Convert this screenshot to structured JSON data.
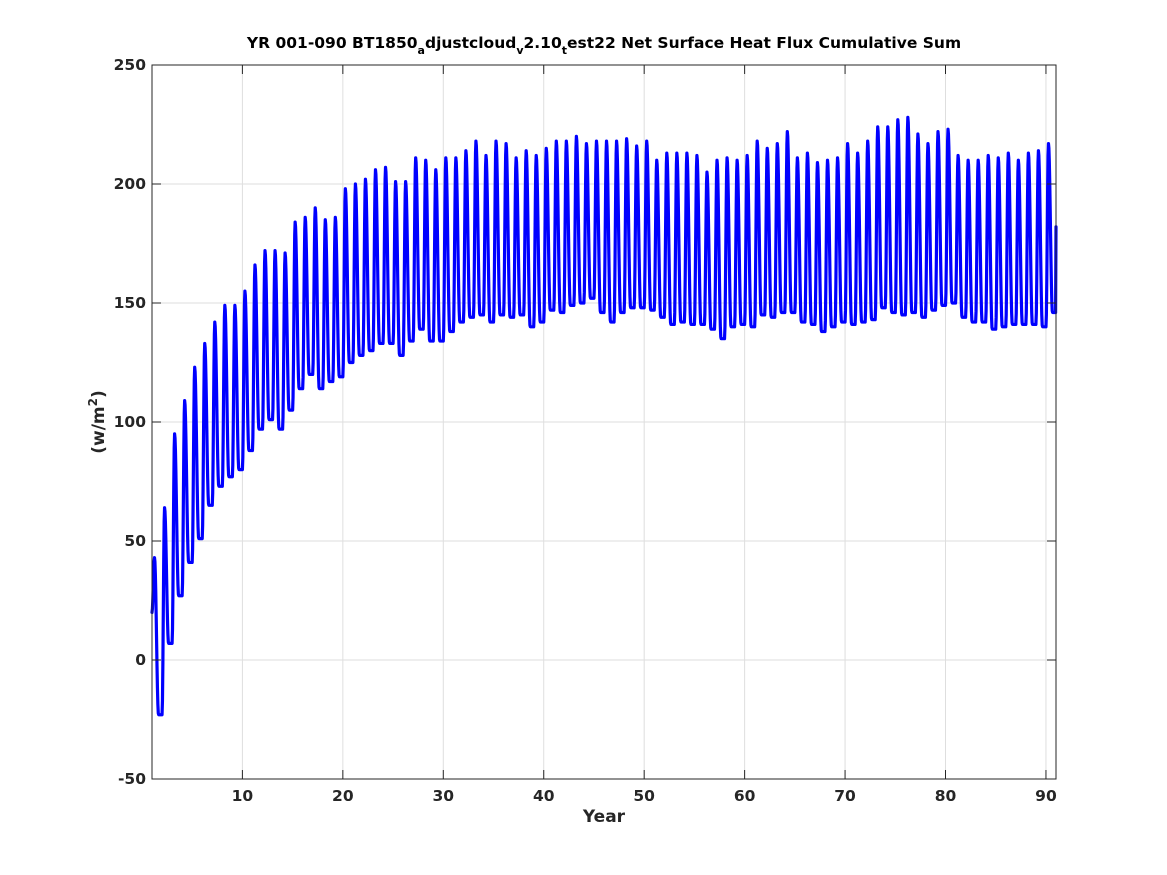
{
  "chart_data": {
    "type": "line",
    "title_parts": {
      "p1": "YR 001-090 BT1850",
      "s1": "a",
      "p2": "djustcloud",
      "s2": "v",
      "p3": "2.10",
      "s3": "t",
      "p4": "est22 Net Surface Heat Flux  Cumulative Sum"
    },
    "xlabel": "Year",
    "ylabel_parts": {
      "base": "(w/m",
      "sup": "2",
      "end": ")"
    },
    "xlim": [
      1,
      91
    ],
    "ylim": [
      -50,
      250
    ],
    "xticks": [
      10,
      20,
      30,
      40,
      50,
      60,
      70,
      80,
      90
    ],
    "yticks": [
      -50,
      0,
      50,
      100,
      150,
      200,
      250
    ],
    "xtick_labels": [
      "10",
      "20",
      "30",
      "40",
      "50",
      "60",
      "70",
      "80",
      "90"
    ],
    "ytick_labels": [
      "-50",
      "0",
      "50",
      "100",
      "150",
      "200",
      "250"
    ],
    "grid": true,
    "series": [
      {
        "color": "#0000ff",
        "x_start": 1.0,
        "x_step": 1.0,
        "x_end": 91.0,
        "cycle_peaks": [
          43,
          64,
          95,
          109,
          123,
          133,
          142,
          149,
          149,
          155,
          166,
          172,
          172,
          171,
          184,
          186,
          190,
          185,
          186,
          198,
          200,
          202,
          206,
          207,
          201,
          201,
          211,
          210,
          206,
          211,
          211,
          214,
          218,
          212,
          218,
          217,
          211,
          214,
          212,
          215,
          218,
          218,
          220,
          217,
          218,
          218,
          218,
          219,
          216,
          218,
          210,
          213,
          213,
          213,
          212,
          205,
          210,
          211,
          210,
          212,
          218,
          215,
          217,
          222,
          211,
          213,
          209,
          210,
          211,
          217,
          213,
          218,
          224,
          224,
          227,
          228,
          221,
          217,
          222,
          223,
          212,
          210,
          210,
          212,
          211,
          213,
          210,
          213,
          214,
          217
        ],
        "cycle_troughs": [
          -23,
          7,
          27,
          41,
          51,
          65,
          73,
          77,
          80,
          88,
          97,
          101,
          97,
          105,
          114,
          120,
          114,
          117,
          119,
          125,
          128,
          130,
          133,
          133,
          128,
          134,
          139,
          134,
          134,
          138,
          142,
          144,
          145,
          142,
          145,
          144,
          145,
          140,
          142,
          147,
          146,
          149,
          150,
          152,
          146,
          142,
          146,
          148,
          148,
          147,
          144,
          141,
          142,
          141,
          141,
          139,
          135,
          140,
          141,
          140,
          145,
          144,
          146,
          146,
          142,
          141,
          138,
          140,
          142,
          141,
          142,
          143,
          148,
          146,
          145,
          146,
          144,
          147,
          149,
          150,
          144,
          142,
          142,
          139,
          140,
          141,
          141,
          141,
          140,
          146
        ],
        "final_value": 182
      }
    ]
  }
}
